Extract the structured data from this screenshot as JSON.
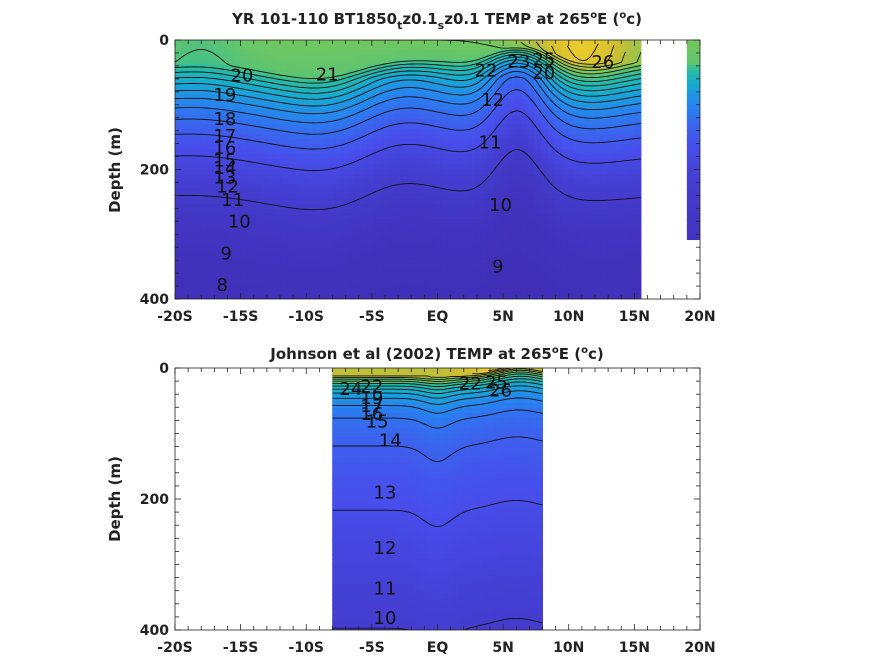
{
  "chart_data": [
    {
      "type": "heatmap",
      "title_parts": [
        "YR 101-110 BT1850",
        "t",
        "z0.1",
        "s",
        "z0.1 TEMP at 265",
        "o",
        "E (",
        "o",
        "c)"
      ],
      "xlabel": "",
      "ylabel": "Depth (m)",
      "xlim": [
        -20,
        20
      ],
      "ylim": [
        400,
        0
      ],
      "x_ticks": [
        -20,
        -15,
        -10,
        -5,
        0,
        5,
        10,
        15,
        20
      ],
      "x_tick_labels": [
        "-20S",
        "-15S",
        "-10S",
        "-5S",
        "EQ",
        "5N",
        "10N",
        "15N",
        "20N"
      ],
      "y_ticks": [
        0,
        200,
        400
      ],
      "y_tick_labels": [
        "0",
        "200",
        "400"
      ],
      "data_extent": [
        -20,
        15.5
      ],
      "strip_extent": [
        19,
        20
      ],
      "contour_levels": [
        8,
        9,
        10,
        11,
        12,
        13,
        14,
        15,
        16,
        17,
        18,
        19,
        20,
        21,
        22,
        23,
        24,
        25,
        26
      ],
      "contour_labels": [
        {
          "text": "20",
          "x": -14.9,
          "y": 55
        },
        {
          "text": "21",
          "x": -8.4,
          "y": 53
        },
        {
          "text": "19",
          "x": -16.2,
          "y": 85
        },
        {
          "text": "18",
          "x": -16.2,
          "y": 122
        },
        {
          "text": "17",
          "x": -16.2,
          "y": 148
        },
        {
          "text": "16",
          "x": -16.2,
          "y": 167
        },
        {
          "text": "15",
          "x": -16.2,
          "y": 186
        },
        {
          "text": "14",
          "x": -16.2,
          "y": 198
        },
        {
          "text": "13",
          "x": -16.2,
          "y": 212
        },
        {
          "text": "12",
          "x": -16.0,
          "y": 226
        },
        {
          "text": "11",
          "x": -15.6,
          "y": 247
        },
        {
          "text": "10",
          "x": -15.1,
          "y": 280
        },
        {
          "text": "9",
          "x": -16.1,
          "y": 330
        },
        {
          "text": "8",
          "x": -16.4,
          "y": 378
        },
        {
          "text": "9",
          "x": 4.6,
          "y": 350
        },
        {
          "text": "10",
          "x": 4.8,
          "y": 255
        },
        {
          "text": "11",
          "x": 4.0,
          "y": 158
        },
        {
          "text": "12",
          "x": 4.2,
          "y": 93
        },
        {
          "text": "22",
          "x": 3.7,
          "y": 47
        },
        {
          "text": "23",
          "x": 6.2,
          "y": 33
        },
        {
          "text": "25",
          "x": 8.1,
          "y": 30
        },
        {
          "text": "20",
          "x": 8.1,
          "y": 51
        },
        {
          "text": "26",
          "x": 12.6,
          "y": 34
        }
      ]
    },
    {
      "type": "heatmap",
      "title_parts": [
        "Johnson et al (2002) TEMP at 265",
        "o",
        "E (",
        "o",
        "c)"
      ],
      "xlabel": "",
      "ylabel": "Depth (m)",
      "xlim": [
        -20,
        20
      ],
      "ylim": [
        400,
        0
      ],
      "x_ticks": [
        -20,
        -15,
        -10,
        -5,
        0,
        5,
        10,
        15,
        20
      ],
      "x_tick_labels": [
        "-20S",
        "-15S",
        "-10S",
        "-5S",
        "EQ",
        "5N",
        "10N",
        "15N",
        "20N"
      ],
      "y_ticks": [
        0,
        200,
        400
      ],
      "y_tick_labels": [
        "0",
        "200",
        "400"
      ],
      "data_extent": [
        -8,
        8
      ],
      "contour_levels": [
        10,
        11,
        12,
        13,
        14,
        15,
        16,
        17,
        18,
        19,
        20,
        21,
        22,
        23,
        24,
        25,
        26,
        27
      ],
      "contour_labels": [
        {
          "text": "24",
          "x": -6.6,
          "y": 32
        },
        {
          "text": "22",
          "x": -5.0,
          "y": 28
        },
        {
          "text": "19",
          "x": -5.0,
          "y": 46
        },
        {
          "text": "17",
          "x": -5.0,
          "y": 58
        },
        {
          "text": "16",
          "x": -5.0,
          "y": 70
        },
        {
          "text": "15",
          "x": -4.6,
          "y": 82
        },
        {
          "text": "14",
          "x": -3.6,
          "y": 111
        },
        {
          "text": "13",
          "x": -4.0,
          "y": 190
        },
        {
          "text": "12",
          "x": -4.0,
          "y": 275
        },
        {
          "text": "11",
          "x": -4.0,
          "y": 337
        },
        {
          "text": "10",
          "x": -4.0,
          "y": 382
        },
        {
          "text": "22",
          "x": 2.5,
          "y": 24
        },
        {
          "text": "25",
          "x": 4.5,
          "y": 22
        },
        {
          "text": "26",
          "x": 4.8,
          "y": 34
        }
      ]
    }
  ]
}
